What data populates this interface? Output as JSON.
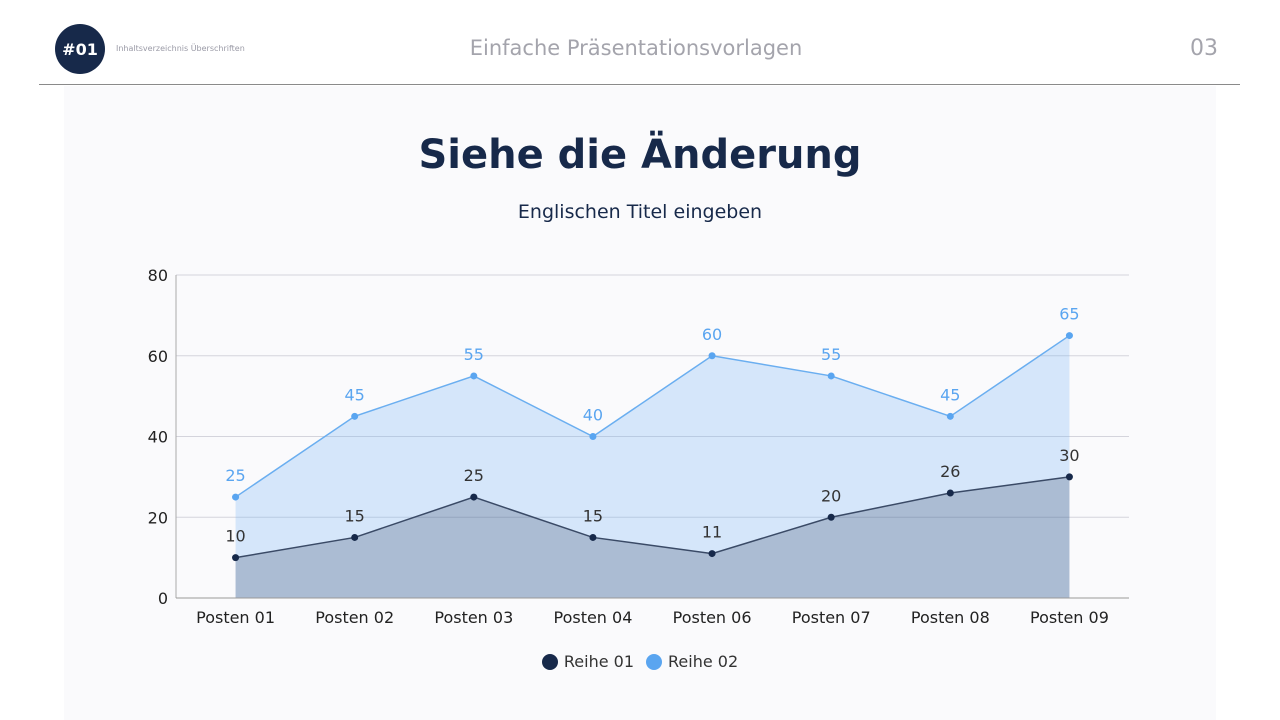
{
  "header": {
    "badge": "#01",
    "toc_label": "Inhaltsverzeichnis Überschriften",
    "title": "Einfache Präsentationsvorlagen",
    "page_number": "03"
  },
  "slide": {
    "title": "Siehe die Änderung",
    "subtitle": "Englischen Titel eingeben"
  },
  "chart_data": {
    "type": "area",
    "categories": [
      "Posten 01",
      "Posten 02",
      "Posten 03",
      "Posten 04",
      "Posten 06",
      "Posten 07",
      "Posten 08",
      "Posten 09"
    ],
    "series": [
      {
        "name": "Reihe 01",
        "values": [
          10,
          15,
          25,
          15,
          11,
          20,
          26,
          30
        ],
        "color": "#17294a"
      },
      {
        "name": "Reihe 02",
        "values": [
          25,
          45,
          55,
          40,
          60,
          55,
          45,
          65
        ],
        "color": "#5aa5f0"
      }
    ],
    "ylim": [
      0,
      80
    ],
    "yticks": [
      0,
      20,
      40,
      60,
      80
    ],
    "grid": true,
    "data_labels": true,
    "legend": "bottom"
  }
}
